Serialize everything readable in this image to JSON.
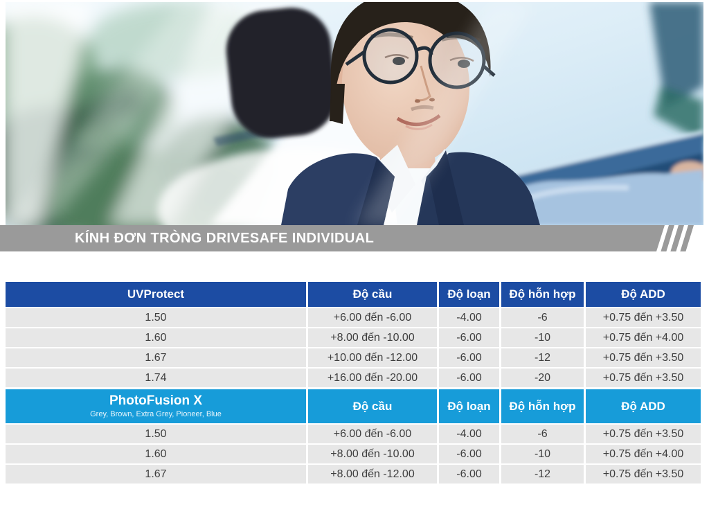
{
  "banner": {
    "title": "KÍNH ĐƠN TRÒNG DRIVESAFE INDIVIDUAL"
  },
  "hero": {
    "alt": "Man with round glasses smiling while sitting in the driver seat of a car, blurred blue-green reflections on the windshield"
  },
  "colors": {
    "banner_bg": "#9A9A9A",
    "table1_header_bg": "#1C4CA3",
    "table2_header_bg": "#179CD9",
    "row_bg": "#E7E7E7",
    "cell_text": "#3E3E3E"
  },
  "tables": [
    {
      "id": "uvprotect",
      "header_bg": "#1C4CA3",
      "first_column_title": "UVProtect",
      "first_column_subtitle": "",
      "columns": [
        "Độ cầu",
        "Độ loạn",
        "Độ hỗn hợp",
        "Độ ADD"
      ],
      "rows": [
        [
          "1.50",
          "+6.00 đến -6.00",
          "-4.00",
          "-6",
          "+0.75 đến +3.50"
        ],
        [
          "1.60",
          "+8.00 đến -10.00",
          "-6.00",
          "-10",
          "+0.75 đến +4.00"
        ],
        [
          "1.67",
          "+10.00 đến -12.00",
          "-6.00",
          "-12",
          "+0.75 đến +3.50"
        ],
        [
          "1.74",
          "+16.00 đến -20.00",
          "-6.00",
          "-20",
          "+0.75 đến +3.50"
        ]
      ]
    },
    {
      "id": "photofusionx",
      "header_bg": "#179CD9",
      "first_column_title": "PhotoFusion X",
      "first_column_subtitle": "Grey, Brown, Extra Grey, Pioneer, Blue",
      "columns": [
        "Độ cầu",
        "Độ loạn",
        "Độ hỗn hợp",
        "Độ ADD"
      ],
      "rows": [
        [
          "1.50",
          "+6.00 đến -6.00",
          "-4.00",
          "-6",
          "+0.75 đến +3.50"
        ],
        [
          "1.60",
          "+8.00 đến -10.00",
          "-6.00",
          "-10",
          "+0.75 đến +4.00"
        ],
        [
          "1.67",
          "+8.00 đến -12.00",
          "-6.00",
          "-12",
          "+0.75 đến +3.50"
        ]
      ]
    }
  ]
}
